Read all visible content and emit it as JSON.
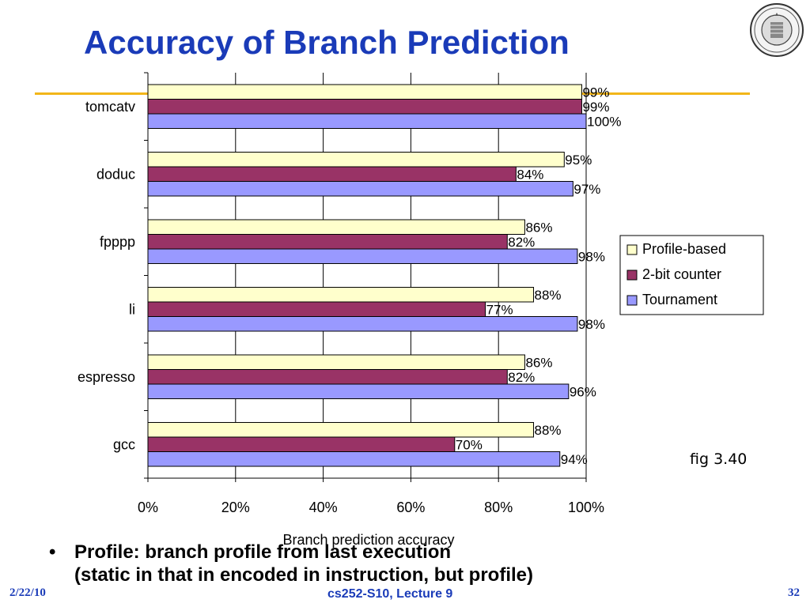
{
  "slide": {
    "title": "Accuracy of Branch Prediction",
    "figure_label": "fig 3.40",
    "bullets": [
      {
        "line1": "Profile: branch profile from last execution",
        "line2": "(static in that in encoded in instruction, but profile)"
      }
    ],
    "footer": {
      "date": "2/22/10",
      "course": "cs252-S10, Lecture 9",
      "page": "32"
    },
    "colors": {
      "title": "#1a3bb8",
      "accent_line": "#f2b619",
      "footer": "#1a3bb8"
    }
  },
  "chart_data": {
    "type": "bar",
    "orientation": "horizontal",
    "categories": [
      "tomcatv",
      "doduc",
      "fpppp",
      "li",
      "espresso",
      "gcc"
    ],
    "series": [
      {
        "name": "Profile-based",
        "color": "#ffffcc",
        "values": [
          99,
          95,
          86,
          88,
          86,
          88
        ],
        "labels": [
          "99%",
          "95%",
          "86%",
          "88%",
          "86%",
          "88%"
        ]
      },
      {
        "name": "2-bit counter",
        "color": "#993366",
        "values": [
          99,
          84,
          82,
          77,
          82,
          70
        ],
        "labels": [
          "99%",
          "84%",
          "82%",
          "77%",
          "82%",
          "70%"
        ]
      },
      {
        "name": "Tournament",
        "color": "#9999ff",
        "values": [
          100,
          97,
          98,
          98,
          96,
          94
        ],
        "labels": [
          "100%",
          "97%",
          "98%",
          "98%",
          "96%",
          "94%"
        ]
      }
    ],
    "xlabel": "Branch prediction accuracy",
    "xlim": [
      0,
      100
    ],
    "x_ticks": [
      0,
      20,
      40,
      60,
      80,
      100
    ],
    "x_tick_labels": [
      "0%",
      "20%",
      "40%",
      "60%",
      "80%",
      "100%"
    ],
    "grid": "vertical",
    "legend": "right"
  }
}
